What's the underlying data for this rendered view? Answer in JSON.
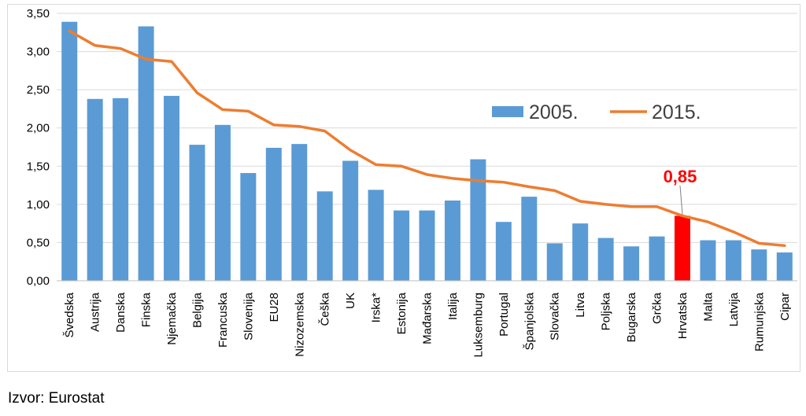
{
  "chart_data": {
    "type": "bar",
    "categories": [
      "Švedska",
      "Austrija",
      "Danska",
      "Finska",
      "Njemačka",
      "Belgija",
      "Francuska",
      "Slovenija",
      "EU28",
      "Nizozemska",
      "Češka",
      "UK",
      "Irska*",
      "Estonija",
      "Mađarska",
      "Italija",
      "Luksemburg",
      "Portugal",
      "Španjolska",
      "Slovačka",
      "Litva",
      "Poljska",
      "Bugarska",
      "Grčka",
      "Hrvatska",
      "Malta",
      "Latvija",
      "Rumunjska",
      "Cipar"
    ],
    "series": [
      {
        "name": "2005.",
        "type": "bar",
        "color": "#5b9bd5",
        "values": [
          3.39,
          2.38,
          2.39,
          3.33,
          2.42,
          1.78,
          2.04,
          1.41,
          1.74,
          1.79,
          1.17,
          1.57,
          1.19,
          0.92,
          0.92,
          1.05,
          1.59,
          0.77,
          1.1,
          0.49,
          0.75,
          0.56,
          0.45,
          0.58,
          0.85,
          0.53,
          0.53,
          0.41,
          0.37
        ]
      },
      {
        "name": "2015.",
        "type": "line",
        "color": "#ed7d31",
        "values": [
          3.27,
          3.08,
          3.04,
          2.9,
          2.87,
          2.46,
          2.24,
          2.22,
          2.04,
          2.02,
          1.96,
          1.71,
          1.52,
          1.5,
          1.39,
          1.34,
          1.31,
          1.29,
          1.23,
          1.18,
          1.04,
          1.0,
          0.97,
          0.97,
          0.85,
          0.77,
          0.64,
          0.49,
          0.46
        ]
      }
    ],
    "highlight": {
      "category": "Hrvatska",
      "color": "#ff0000",
      "label": "0,85"
    },
    "ylim": [
      0,
      3.5
    ],
    "yticks": [
      "0,00",
      "0,50",
      "1,00",
      "1,50",
      "2,00",
      "2,50",
      "3,00",
      "3,50"
    ],
    "grid": true,
    "legend_position": "right"
  },
  "source_note": "Izvor: Eurostat"
}
